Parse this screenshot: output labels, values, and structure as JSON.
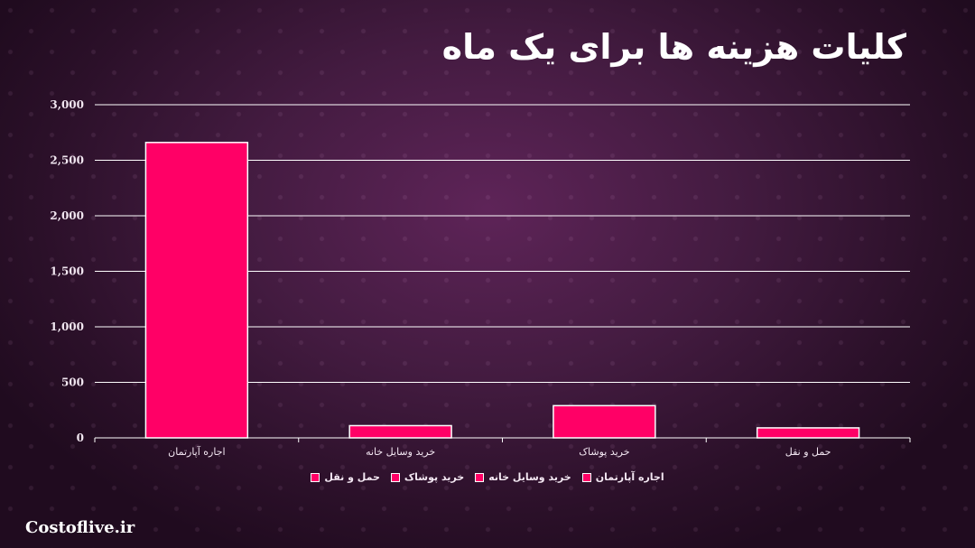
{
  "title": "کلیات هزینه ها برای یک ماه",
  "brand": "Costoflive.ir",
  "colors": {
    "bar": "#ff0066",
    "bar_border": "#ffffff",
    "grid": "#ffffff",
    "axis_text": "#f1e6f0"
  },
  "chart_data": {
    "type": "bar",
    "categories": [
      "اجاره آپارتمان",
      "خرید وسایل خانه",
      "خرید پوشاک",
      "حمل و نقل"
    ],
    "values": [
      2660,
      110,
      290,
      90
    ],
    "ylim": [
      0,
      3000
    ],
    "yticks": [
      "0",
      "500",
      "1,000",
      "1,500",
      "2,000",
      "2,500",
      "3,000"
    ],
    "grid": true,
    "legend": {
      "placement": "bottom",
      "entries": [
        "اجاره آپارتمان",
        "خرید وسایل خانه",
        "خرید پوشاک",
        "حمل و نقل"
      ]
    }
  }
}
